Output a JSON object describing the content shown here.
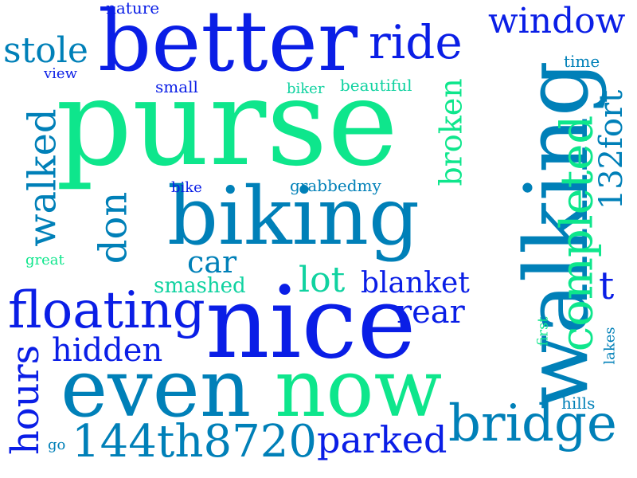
{
  "palette": {
    "blue": "#0a1ee6",
    "teal": "#0080b8",
    "green": "#0ee68c",
    "mint": "#10d2a0"
  },
  "words": [
    {
      "text": "purse",
      "color": "green"
    },
    {
      "text": "walking",
      "color": "teal"
    },
    {
      "text": "better",
      "color": "blue"
    },
    {
      "text": "nice",
      "color": "blue"
    },
    {
      "text": "biking",
      "color": "teal"
    },
    {
      "text": "even",
      "color": "teal"
    },
    {
      "text": "now",
      "color": "green"
    },
    {
      "text": "completed",
      "color": "green"
    },
    {
      "text": "floating",
      "color": "blue"
    },
    {
      "text": "bridge",
      "color": "teal"
    },
    {
      "text": "144th8720",
      "color": "teal"
    },
    {
      "text": "walked",
      "color": "teal"
    },
    {
      "text": "ride",
      "color": "blue"
    },
    {
      "text": "window",
      "color": "blue"
    },
    {
      "text": "parked",
      "color": "blue"
    },
    {
      "text": "hours",
      "color": "blue"
    },
    {
      "text": "don",
      "color": "teal"
    },
    {
      "text": "stole",
      "color": "teal"
    },
    {
      "text": "132fort",
      "color": "teal"
    },
    {
      "text": "hidden",
      "color": "blue"
    },
    {
      "text": "blanket",
      "color": "blue"
    },
    {
      "text": "rear",
      "color": "blue"
    },
    {
      "text": "broken",
      "color": "green"
    },
    {
      "text": "lot",
      "color": "mint"
    },
    {
      "text": "car",
      "color": "teal"
    },
    {
      "text": "t",
      "color": "blue"
    },
    {
      "text": "smashed",
      "color": "mint"
    },
    {
      "text": "nature",
      "color": "blue"
    },
    {
      "text": "view",
      "color": "blue"
    },
    {
      "text": "small",
      "color": "blue"
    },
    {
      "text": "biker",
      "color": "mint"
    },
    {
      "text": "beautiful",
      "color": "mint"
    },
    {
      "text": "time",
      "color": "teal"
    },
    {
      "text": "bike",
      "color": "blue"
    },
    {
      "text": "grabbedmy",
      "color": "teal"
    },
    {
      "text": "great",
      "color": "green"
    },
    {
      "text": "first",
      "color": "green"
    },
    {
      "text": "lakes",
      "color": "teal"
    },
    {
      "text": "hills",
      "color": "teal"
    },
    {
      "text": "go",
      "color": "teal"
    }
  ]
}
